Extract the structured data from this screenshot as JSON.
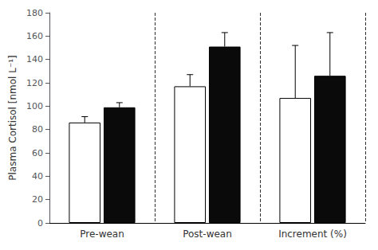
{
  "chart_data": {
    "type": "bar",
    "categories": [
      "Pre-wean",
      "Post-wean",
      "Increment (%)"
    ],
    "series": [
      {
        "color": "none",
        "values": [
          86,
          117,
          107
        ],
        "errors": [
          5,
          10,
          45
        ]
      },
      {
        "color": "#0a0a0a",
        "values": [
          99,
          151,
          126
        ],
        "errors": [
          4,
          12,
          37
        ]
      }
    ],
    "ylabel": "Plasma Cortisol [nmol L⁻¹]",
    "ylim": [
      0,
      180
    ],
    "yticks": [
      0,
      20,
      40,
      60,
      80,
      100,
      120,
      140,
      160,
      180
    ],
    "grid": false
  }
}
